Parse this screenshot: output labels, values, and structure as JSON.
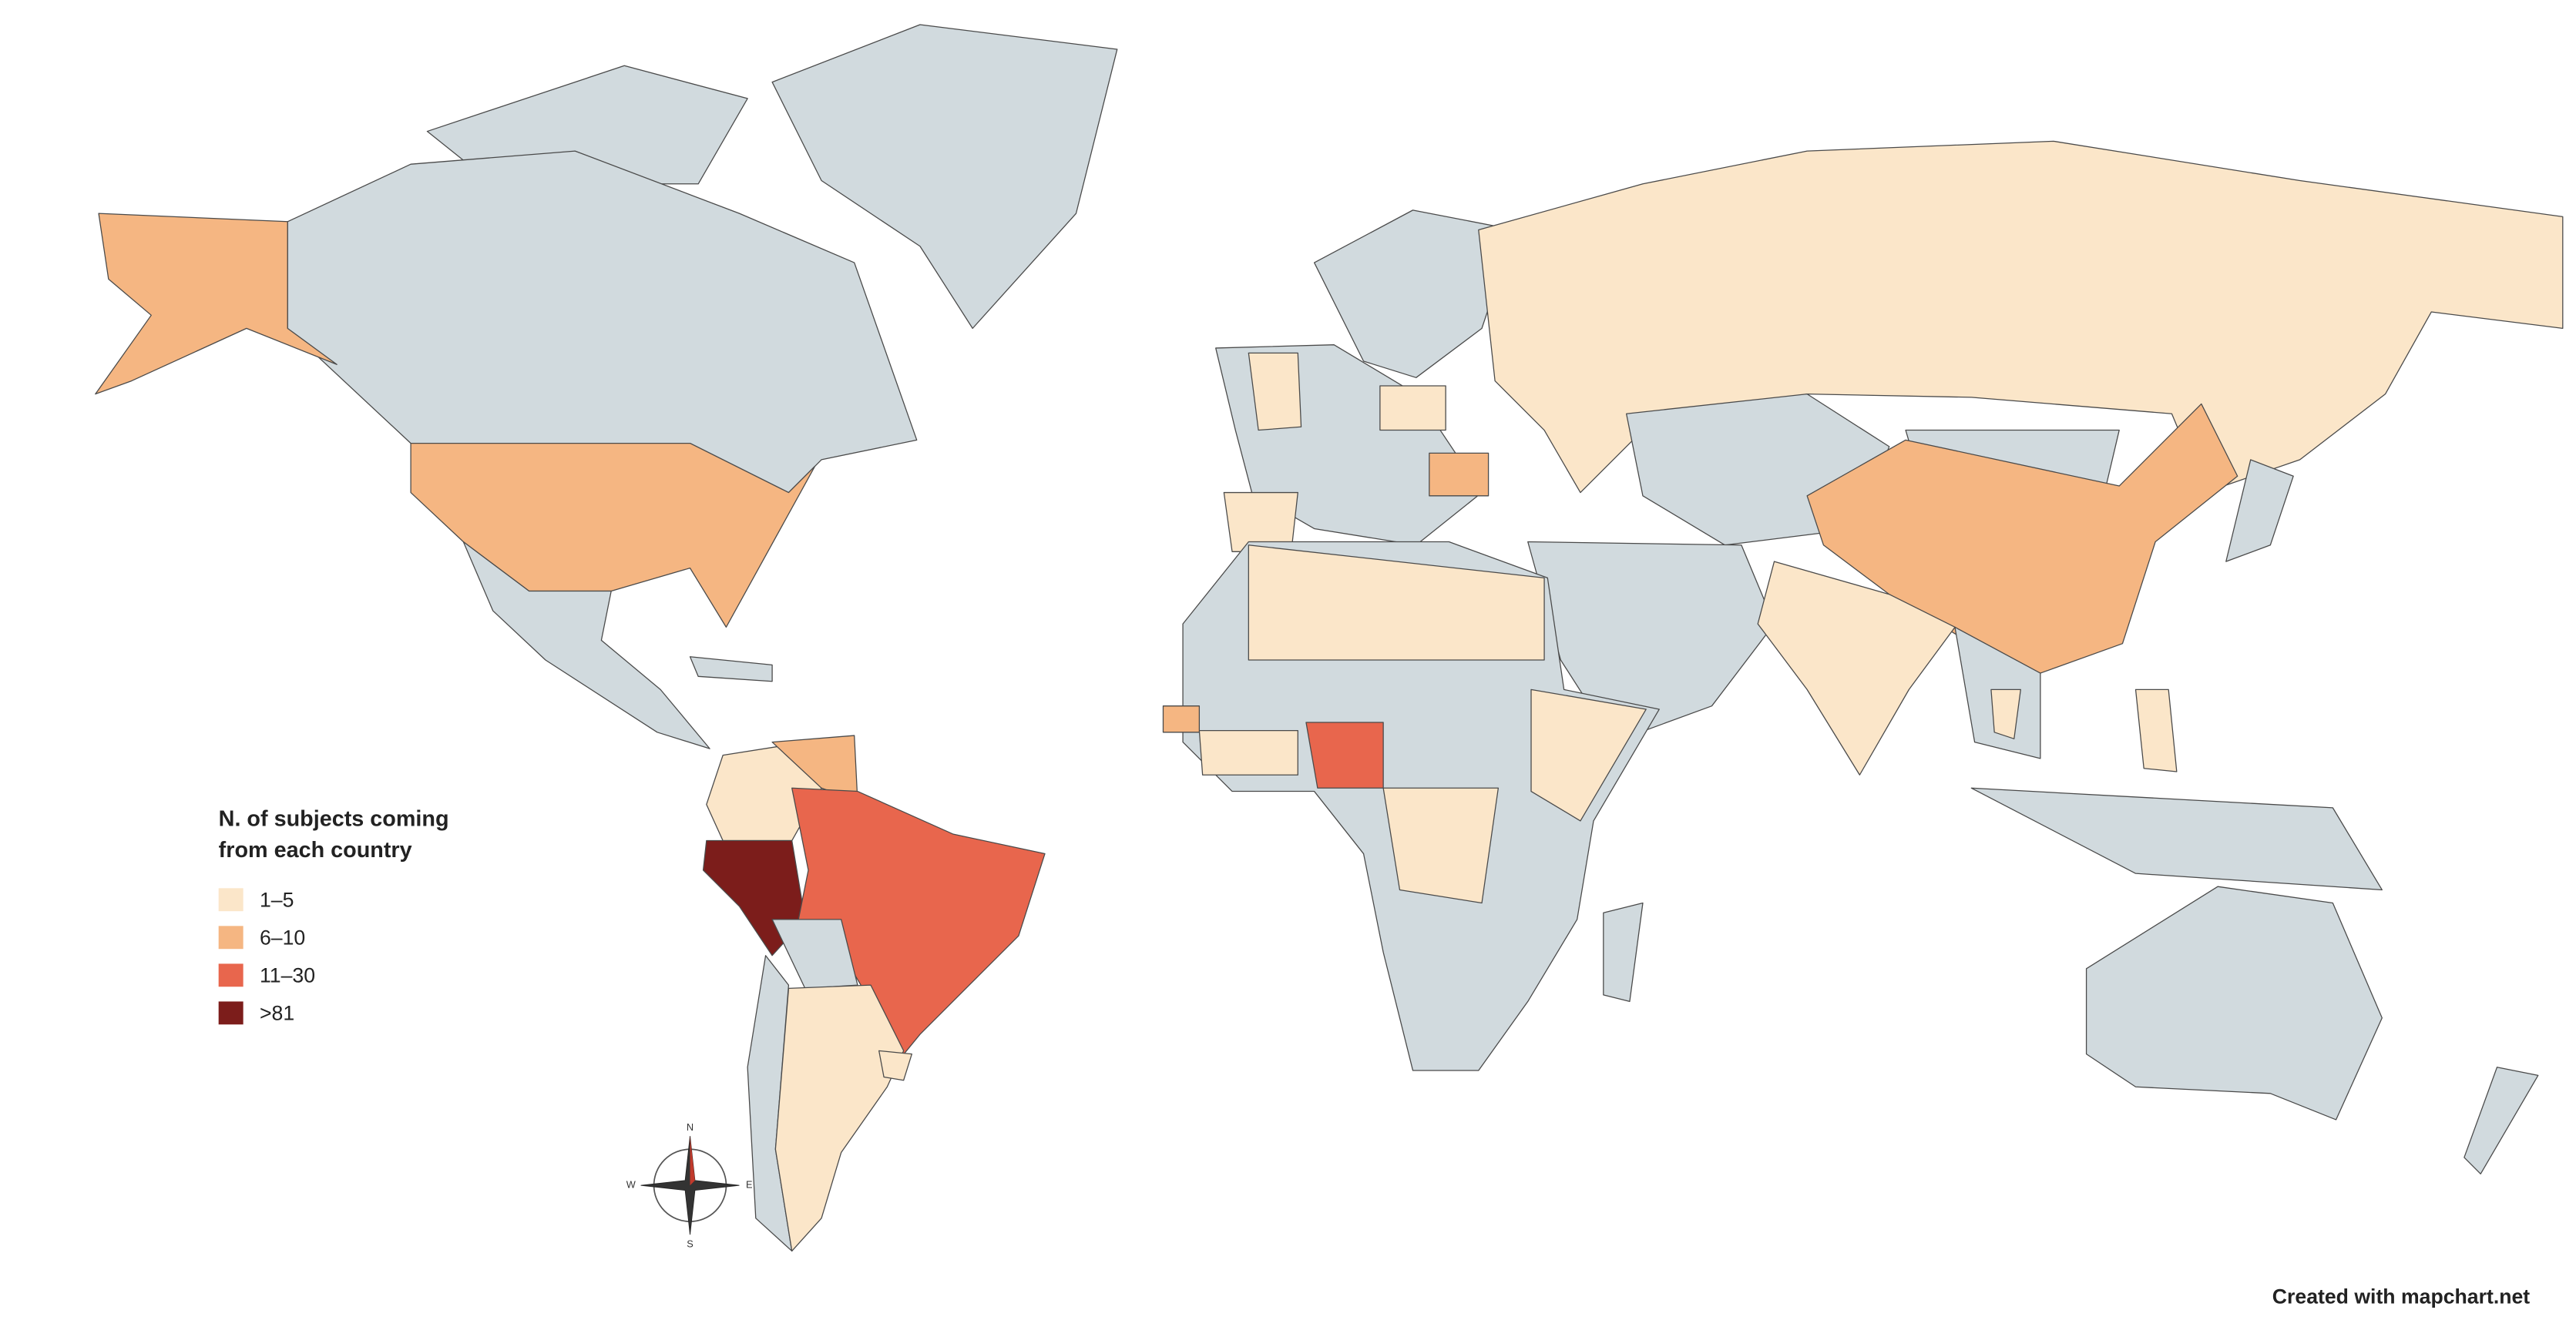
{
  "legend": {
    "title_lines": [
      "N. of subjects coming",
      "from each country"
    ],
    "items": [
      {
        "label": "1–5",
        "color": "#fbe6c9"
      },
      {
        "label": "6–10",
        "color": "#f5b682"
      },
      {
        "label": "11–30",
        "color": "#e8664d"
      },
      {
        "label": ">81",
        "color": "#7c1d1b"
      }
    ]
  },
  "compass": {
    "north": "N",
    "south": "S",
    "east": "E",
    "west": "W"
  },
  "credit": "Created with mapchart.net"
}
